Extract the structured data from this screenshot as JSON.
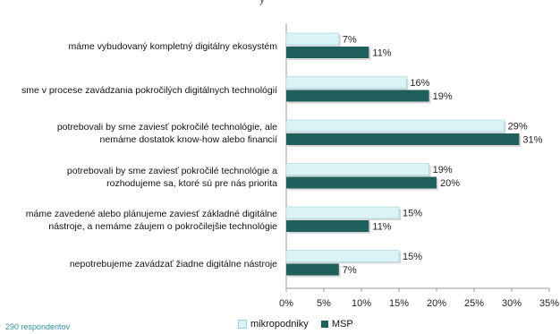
{
  "chart_data": {
    "type": "bar",
    "orientation": "horizontal",
    "categories": [
      "máme vybudovaný kompletný digitálny ekosystém",
      "sme v procese zavádzania pokročilých digitálnych technológií",
      "potrebovali by sme zaviesť pokročilé technológie, ale\nnemáme dostatok know-how alebo financií",
      "potrebovali by sme zaviesť pokročilé technológie a\nrozhodujeme sa, ktoré sú pre nás priorita",
      "máme zavedené alebo plánujeme zaviesť základné digitálne\nnástroje, a nemáme záujem o pokročilejšie technológie",
      "nepotrebujeme zavádzať žiadne digitálne nástroje"
    ],
    "series": [
      {
        "name": "mikropodniky",
        "values": [
          7,
          16,
          29,
          19,
          15,
          15
        ],
        "labels": [
          "7%",
          "16%",
          "29%",
          "19%",
          "15%",
          "15%"
        ]
      },
      {
        "name": "MSP",
        "values": [
          11,
          19,
          31,
          20,
          11,
          7
        ],
        "labels": [
          "11%",
          "19%",
          "31%",
          "20%",
          "11%",
          "7%"
        ]
      }
    ],
    "xlim": [
      0,
      35
    ],
    "ticks": [
      "0%",
      "5%",
      "10%",
      "15%",
      "20%",
      "25%",
      "30%",
      "35%"
    ],
    "grid": false,
    "legend": "bottom"
  },
  "colors": {
    "mikropodniky": "#d9f3f7",
    "MSP": "#1f5f5c",
    "axis": "#9a9a9a"
  },
  "footer": {
    "respondents": "290 respondentov"
  },
  "title_fragment": "y"
}
